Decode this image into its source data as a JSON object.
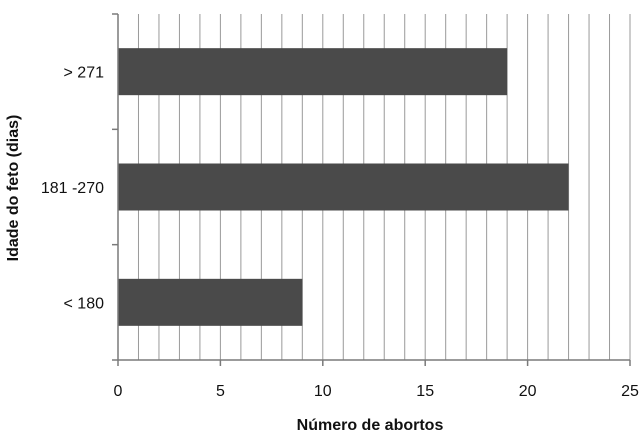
{
  "chart_data": {
    "type": "bar",
    "orientation": "horizontal",
    "categories": [
      "< 180",
      "181 -270",
      "> 271"
    ],
    "values": [
      9,
      22,
      19
    ],
    "xlabel": "Número de abortos",
    "ylabel": "Idade do feto (dias)",
    "xlim": [
      0,
      25
    ],
    "xticks": [
      0,
      5,
      10,
      15,
      20,
      25
    ],
    "grid": "vertical, every 1 unit",
    "bar_color": "#4a4a4a",
    "grid_color": "#9a9a9a",
    "axis_color": "#7a7a7a"
  }
}
